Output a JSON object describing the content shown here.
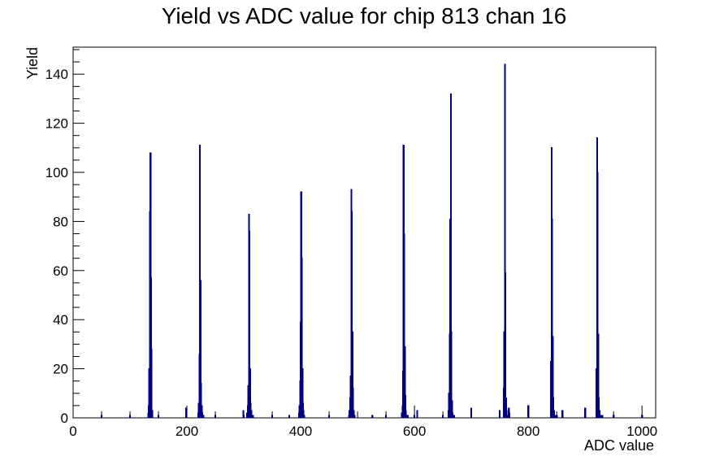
{
  "chart_data": {
    "type": "bar",
    "title": "Yield vs ADC value for chip 813 chan 16",
    "xlabel": "ADC value",
    "ylabel": "Yield",
    "xlim": [
      0,
      1024
    ],
    "ylim": [
      0,
      151
    ],
    "x_ticks": [
      0,
      200,
      400,
      600,
      800,
      1000
    ],
    "y_ticks": [
      0,
      20,
      40,
      60,
      80,
      100,
      120,
      140
    ],
    "grid": false,
    "legend": "none",
    "line_color": "#000080",
    "series": [
      {
        "x": [
          50,
          100,
          132,
          133,
          134,
          135,
          136,
          137,
          138,
          139,
          150,
          199,
          220,
          221,
          222,
          223,
          224,
          225,
          226,
          227,
          228,
          229,
          250,
          299,
          300,
          306,
          307,
          308,
          309,
          310,
          311,
          312,
          313,
          314,
          315,
          316,
          350,
          380,
          397,
          398,
          399,
          400,
          401,
          402,
          403,
          404,
          405,
          406,
          450,
          485,
          486,
          487,
          488,
          489,
          490,
          491,
          492,
          493,
          494,
          495,
          526,
          550,
          578,
          579,
          580,
          581,
          582,
          583,
          584,
          585,
          586,
          587,
          588,
          600,
          605,
          650,
          660,
          661,
          662,
          663,
          664,
          665,
          666,
          667,
          668,
          669,
          670,
          700,
          750,
          757,
          758,
          759,
          760,
          761,
          762,
          763,
          764,
          765,
          766,
          767,
          800,
          840,
          841,
          842,
          843,
          844,
          845,
          846,
          847,
          848,
          849,
          850,
          860,
          900,
          920,
          921,
          922,
          923,
          924,
          925,
          926,
          927,
          928,
          929,
          930,
          950,
          1000
        ],
        "values": [
          1,
          1,
          2,
          5,
          20,
          84,
          108,
          57,
          28,
          3,
          1,
          4,
          2,
          6,
          26,
          111,
          56,
          14,
          5,
          2,
          1,
          1,
          1,
          3,
          1,
          2,
          5,
          13,
          83,
          76,
          20,
          6,
          3,
          1,
          1,
          1,
          1,
          1,
          2,
          5,
          15,
          39,
          92,
          65,
          20,
          6,
          3,
          1,
          1,
          1,
          3,
          8,
          17,
          93,
          84,
          35,
          12,
          3,
          1,
          1,
          1,
          1,
          2,
          5,
          19,
          111,
          75,
          29,
          9,
          3,
          1,
          1,
          1,
          1,
          3,
          1,
          3,
          10,
          34,
          81,
          132,
          35,
          7,
          2,
          1,
          1,
          1,
          4,
          3,
          12,
          35,
          144,
          59,
          8,
          3,
          1,
          1,
          1,
          4,
          2,
          5,
          23,
          110,
          81,
          33,
          8,
          3,
          1,
          1,
          1,
          1,
          1,
          3,
          4,
          20,
          114,
          100,
          34,
          8,
          3,
          1,
          1,
          1,
          1,
          1,
          1,
          1
        ]
      }
    ]
  }
}
